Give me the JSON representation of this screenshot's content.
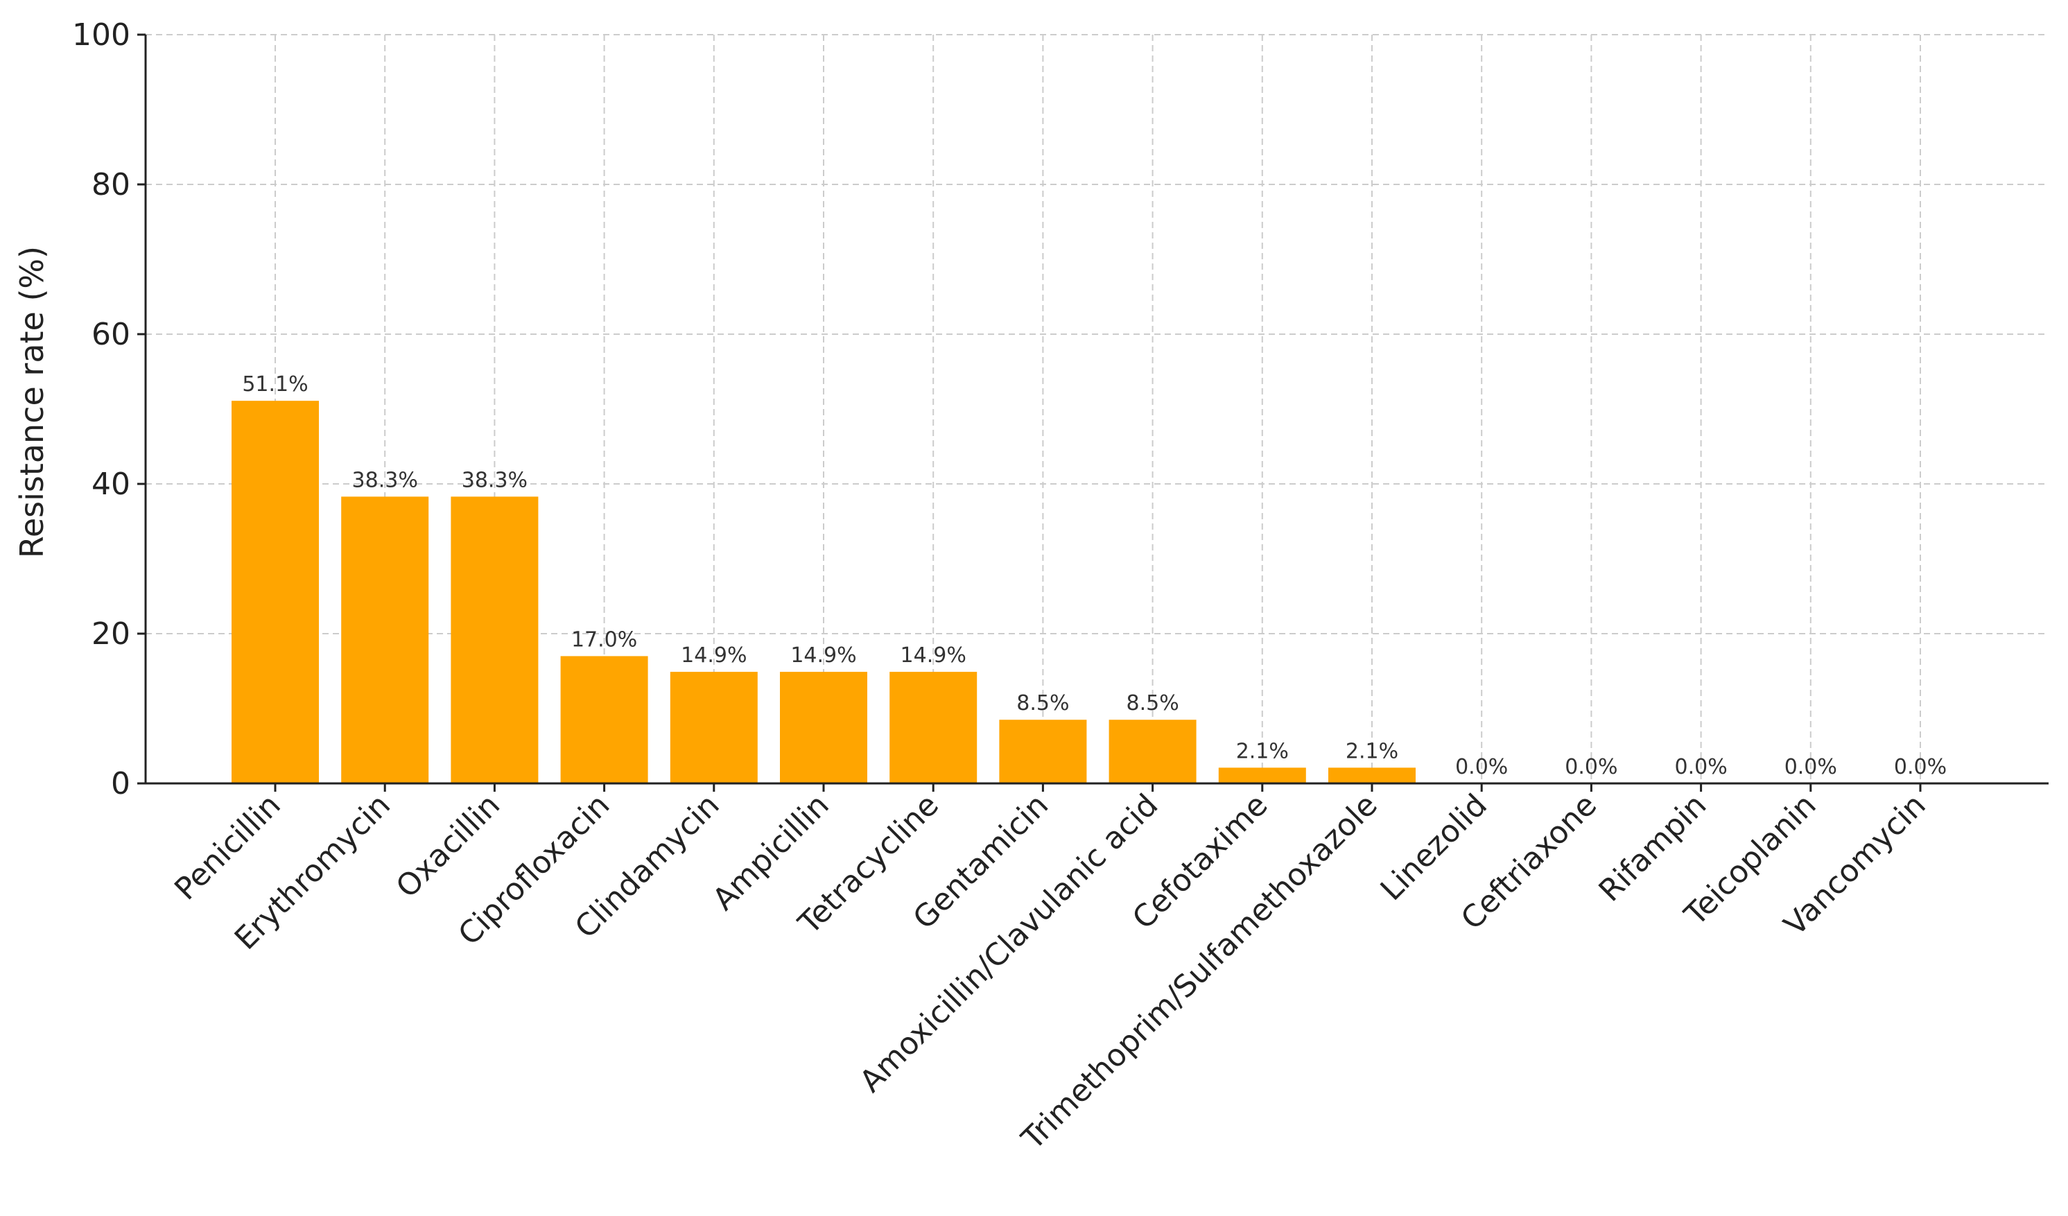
{
  "chart_data": {
    "type": "bar",
    "title": "",
    "xlabel": "",
    "ylabel": "Resistance rate (%)",
    "ylim": [
      0,
      100
    ],
    "yticks": [
      0,
      20,
      40,
      60,
      80,
      100
    ],
    "grid": true,
    "bar_color": "#FFA500",
    "categories": [
      "Penicillin",
      "Erythromycin",
      "Oxacillin",
      "Ciprofloxacin",
      "Clindamycin",
      "Ampicillin",
      "Tetracycline",
      "Gentamicin",
      "Amoxicillin/Clavulanic acid",
      "Cefotaxime",
      "Trimethoprim/Sulfamethoxazole",
      "Linezolid",
      "Ceftriaxone",
      "Rifampin",
      "Teicoplanin",
      "Vancomycin"
    ],
    "values": [
      51.1,
      38.3,
      38.3,
      17.0,
      14.9,
      14.9,
      14.9,
      8.5,
      8.5,
      2.1,
      2.1,
      0.0,
      0.0,
      0.0,
      0.0,
      0.0
    ],
    "data_labels": [
      "51.1%",
      "38.3%",
      "38.3%",
      "17.0%",
      "14.9%",
      "14.9%",
      "14.9%",
      "8.5%",
      "8.5%",
      "2.1%",
      "2.1%",
      "0.0%",
      "0.0%",
      "0.0%",
      "0.0%",
      "0.0%"
    ]
  }
}
